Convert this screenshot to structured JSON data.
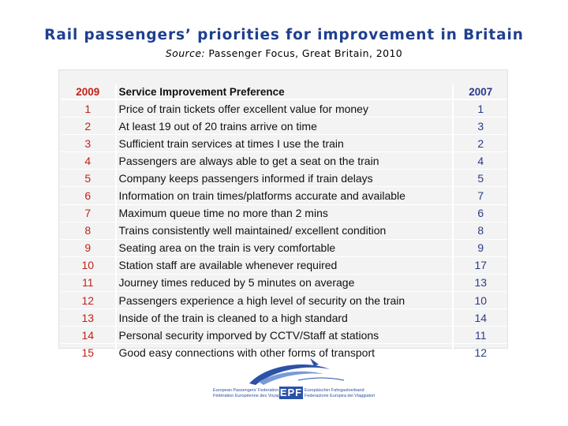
{
  "title": "Rail passengers’ priorities for improvement in Britain",
  "source_label": "Source:",
  "source_text": " Passenger Focus, Great Britain, 2010",
  "table": {
    "headers": {
      "rank_2009": "2009",
      "preference": "Service Improvement Preference",
      "rank_2007": "2007"
    },
    "rows": [
      {
        "rank_2009": "1",
        "preference": "Price of train tickets offer excellent value for money",
        "rank_2007": "1"
      },
      {
        "rank_2009": "2",
        "preference": "At least 19 out of 20 trains arrive on time",
        "rank_2007": "3"
      },
      {
        "rank_2009": "3",
        "preference": "Sufficient train services at times I use the train",
        "rank_2007": "2"
      },
      {
        "rank_2009": "4",
        "preference": "Passengers are always able to get a seat on the train",
        "rank_2007": "4"
      },
      {
        "rank_2009": "5",
        "preference": "Company keeps passengers informed if train delays",
        "rank_2007": "5"
      },
      {
        "rank_2009": "6",
        "preference": "Information on train times/platforms accurate and available",
        "rank_2007": "7"
      },
      {
        "rank_2009": "7",
        "preference": "Maximum queue time no more than 2 mins",
        "rank_2007": "6"
      },
      {
        "rank_2009": "8",
        "preference": "Trains consistently well maintained/ excellent condition",
        "rank_2007": "8"
      },
      {
        "rank_2009": "9",
        "preference": "Seating area on the train is very comfortable",
        "rank_2007": "9"
      },
      {
        "rank_2009": "10",
        "preference": "Station staff are available whenever required",
        "rank_2007": "17"
      },
      {
        "rank_2009": "11",
        "preference": "Journey times  reduced by 5 minutes on average",
        "rank_2007": "13"
      },
      {
        "rank_2009": "12",
        "preference": "Passengers experience a high level of security on the train",
        "rank_2007": "10"
      },
      {
        "rank_2009": "13",
        "preference": "Inside of the train is cleaned to a high standard",
        "rank_2007": "14"
      },
      {
        "rank_2009": "14",
        "preference": "Personal security imporved by CCTV/Staff at stations",
        "rank_2007": "11"
      },
      {
        "rank_2009": "15",
        "preference": "Good easy connections with other forms of transport",
        "rank_2007": "12"
      }
    ]
  },
  "logo": {
    "mark": "EPF",
    "left_lines": [
      "European Passengers' Federation",
      "Fédération Européenne des Voyageurs"
    ],
    "right_lines": [
      "Europäischer Fahrgastverband",
      "Federazione Europea dei Viaggiatori"
    ]
  },
  "colors": {
    "title": "#1f3f8f",
    "rank_2009": "#c0221a",
    "rank_2007": "#2a3b8a",
    "table_bg": "#f3f3f3",
    "logo_blue": "#2b52a8"
  }
}
